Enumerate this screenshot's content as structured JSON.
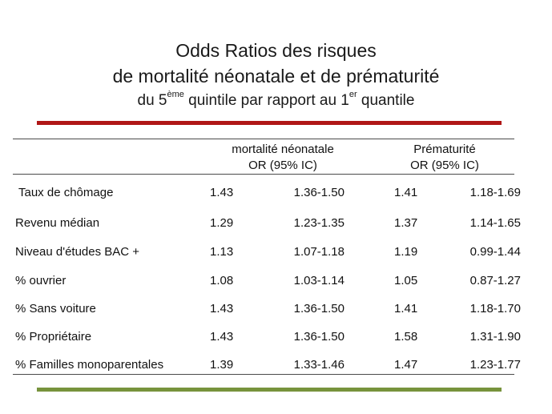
{
  "title": {
    "line1": "Odds Ratios des risques",
    "line2": "de mortalité néonatale et de prématurité",
    "line3_a": "du 5",
    "line3_sup1": "ème",
    "line3_b": " quintile par rapport au 1",
    "line3_sup2": "er",
    "line3_c": " quantile"
  },
  "colors": {
    "top_bar": "#b01616",
    "bottom_bar": "#77933c"
  },
  "table": {
    "header_a_line1": "mortalité néonatale",
    "header_a_line2": "OR (95% IC)",
    "header_b_line1": "Prématurité",
    "header_b_line2": "OR (95% IC)",
    "rows": [
      {
        "label": "Taux de chômage",
        "or1": "1.43",
        "ci1": "1.36-1.50",
        "or2": "1.41",
        "ci2": "1.18-1.69"
      },
      {
        "label": "Revenu médian",
        "or1": "1.29",
        "ci1": "1.23-1.35",
        "or2": "1.37",
        "ci2": "1.14-1.65"
      },
      {
        "label": "Niveau d'études BAC +",
        "or1": "1.13",
        "ci1": "1.07-1.18",
        "or2": "1.19",
        "ci2": "0.99-1.44"
      },
      {
        "label": "% ouvrier",
        "or1": "1.08",
        "ci1": "1.03-1.14",
        "or2": "1.05",
        "ci2": "0.87-1.27"
      },
      {
        "label": "% Sans voiture",
        "or1": "1.43",
        "ci1": "1.36-1.50",
        "or2": "1.41",
        "ci2": "1.18-1.70"
      },
      {
        "label": "% Propriétaire",
        "or1": "1.43",
        "ci1": "1.36-1.50",
        "or2": "1.58",
        "ci2": "1.31-1.90"
      },
      {
        "label": "% Familles monoparentales",
        "or1": "1.39",
        "ci1": "1.33-1.46",
        "or2": "1.47",
        "ci2": "1.23-1.77"
      }
    ]
  }
}
